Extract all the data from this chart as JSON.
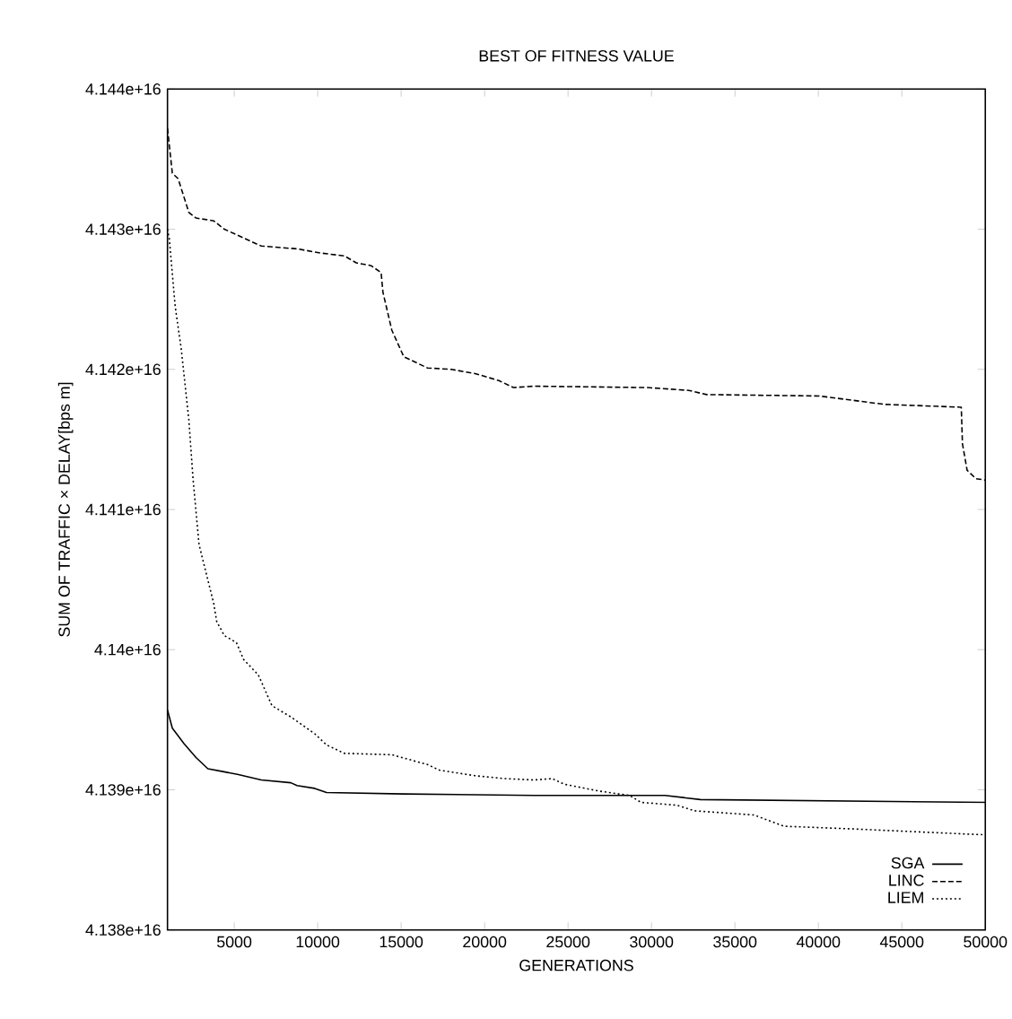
{
  "chart_data": {
    "type": "line",
    "title": "BEST OF FITNESS VALUE",
    "xlabel": "GENERATIONS",
    "ylabel": "SUM OF TRAFFIC × DELAY[bps m]",
    "xlim": [
      1000,
      50000
    ],
    "xticks": [
      5000,
      10000,
      15000,
      20000,
      25000,
      30000,
      35000,
      40000,
      45000,
      50000
    ],
    "ylim": [
      4.138e+16,
      4.144e+16
    ],
    "yticks": [
      {
        "value": 4.138e+16,
        "label": "4.138e+16"
      },
      {
        "value": 4.139e+16,
        "label": "4.139e+16"
      },
      {
        "value": 4.14e+16,
        "label": "4.14e+16"
      },
      {
        "value": 4.141e+16,
        "label": "4.141e+16"
      },
      {
        "value": 4.142e+16,
        "label": "4.142e+16"
      },
      {
        "value": 4.143e+16,
        "label": "4.143e+16"
      },
      {
        "value": 4.144e+16,
        "label": "4.144e+16"
      }
    ],
    "grid": false,
    "legend": "bottom right",
    "series": [
      {
        "name": "SGA",
        "color": "#000000",
        "line_style": "solid",
        "x": [
          1000,
          1290,
          1990,
          2710,
          3420,
          4310,
          5190,
          6620,
          8390,
          8760,
          9820,
          10530,
          15160,
          22980,
          30800,
          32930,
          50000
        ],
        "values": [
          4.13957e+16,
          4.13944e+16,
          4.13933e+16,
          4.13923e+16,
          4.13915e+16,
          4.13913e+16,
          4.13911e+16,
          4.13907e+16,
          4.13905e+16,
          4.13903e+16,
          4.13901e+16,
          4.13898e+16,
          4.13897e+16,
          4.13896e+16,
          4.13896e+16,
          4.13893e+16,
          4.13891e+16
        ]
      },
      {
        "name": "LINC",
        "color": "#000000",
        "line_style": "dashed",
        "x": [
          1000,
          1290,
          1640,
          2280,
          2710,
          3770,
          4410,
          6620,
          8760,
          10180,
          11600,
          12310,
          13200,
          13800,
          13910,
          14440,
          15160,
          16580,
          18000,
          19430,
          20850,
          21730,
          22980,
          29740,
          32230,
          33300,
          40050,
          43970,
          48560,
          48630,
          48910,
          49440,
          50000
        ],
        "values": [
          4.14372e+16,
          4.1434e+16,
          4.14336e+16,
          4.14312e+16,
          4.14308e+16,
          4.14306e+16,
          4.143e+16,
          4.14288e+16,
          4.14286e+16,
          4.14283e+16,
          4.14281e+16,
          4.14276e+16,
          4.14274e+16,
          4.14269e+16,
          4.14255e+16,
          4.14228e+16,
          4.14209e+16,
          4.14201e+16,
          4.142e+16,
          4.14197e+16,
          4.14192e+16,
          4.14187e+16,
          4.14188e+16,
          4.14187e+16,
          4.14185e+16,
          4.14182e+16,
          4.14181e+16,
          4.14175e+16,
          4.14173e+16,
          4.14147e+16,
          4.14128e+16,
          4.14122e+16,
          4.14121e+16
        ]
      },
      {
        "name": "LIEM",
        "color": "#000000",
        "line_style": "dotted",
        "x": [
          1000,
          1110,
          1460,
          1820,
          2280,
          2530,
          2890,
          3770,
          3950,
          4410,
          5130,
          5560,
          6440,
          7260,
          8390,
          9820,
          10530,
          11600,
          14440,
          16580,
          17290,
          19430,
          21200,
          22980,
          24050,
          24760,
          26890,
          28670,
          29380,
          31520,
          32580,
          36140,
          37920,
          42190,
          49660,
          50000
        ],
        "values": [
          4.143e+16,
          4.14293e+16,
          4.14245e+16,
          4.14215e+16,
          4.14164e+16,
          4.14122e+16,
          4.14075e+16,
          4.14033e+16,
          4.1402e+16,
          4.1401e+16,
          4.14005e+16,
          4.13993e+16,
          4.13982e+16,
          4.1396e+16,
          4.13952e+16,
          4.1394e+16,
          4.13932e+16,
          4.13926e+16,
          4.13925e+16,
          4.13918e+16,
          4.13914e+16,
          4.1391e+16,
          4.13908e+16,
          4.13907e+16,
          4.13908e+16,
          4.13904e+16,
          4.13899e+16,
          4.13896e+16,
          4.13891e+16,
          4.13889e+16,
          4.13885e+16,
          4.13882e+16,
          4.13874e+16,
          4.13872e+16,
          4.13868e+16,
          4.13868e+16
        ]
      }
    ]
  }
}
